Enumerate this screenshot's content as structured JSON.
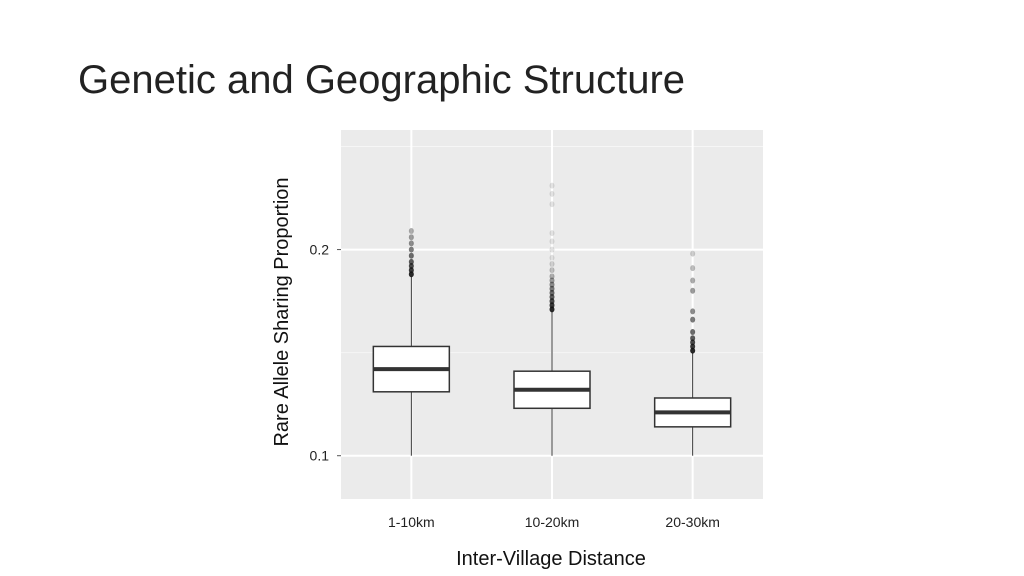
{
  "slide": {
    "title": "Genetic and Geographic Structure"
  },
  "chart_data": {
    "type": "box",
    "title": "",
    "xlabel": "Inter-Village Distance",
    "ylabel": "Rare Allele Sharing Proportion",
    "categories": [
      "1-10km",
      "10-20km",
      "20-30km"
    ],
    "y_ticks": [
      0.1,
      0.2
    ],
    "y_tick_labels": [
      "0.1",
      "0.2"
    ],
    "ylim": [
      0.079,
      0.258
    ],
    "grid": true,
    "legend": "none",
    "boxes": [
      {
        "category": "1-10km",
        "whisker_low": 0.1,
        "q1": 0.131,
        "median": 0.142,
        "q3": 0.153,
        "whisker_high": 0.187,
        "outliers": [
          0.188,
          0.19,
          0.192,
          0.194,
          0.197,
          0.2,
          0.203,
          0.206,
          0.209
        ]
      },
      {
        "category": "10-20km",
        "whisker_low": 0.1,
        "q1": 0.123,
        "median": 0.132,
        "q3": 0.141,
        "whisker_high": 0.17,
        "outliers": [
          0.171,
          0.173,
          0.175,
          0.177,
          0.179,
          0.181,
          0.183,
          0.185,
          0.187,
          0.19,
          0.193,
          0.196,
          0.2,
          0.204,
          0.208,
          0.222,
          0.227,
          0.231
        ]
      },
      {
        "category": "20-30km",
        "whisker_low": 0.1,
        "q1": 0.114,
        "median": 0.121,
        "q3": 0.128,
        "whisker_high": 0.15,
        "outliers": [
          0.151,
          0.153,
          0.155,
          0.157,
          0.16,
          0.166,
          0.17,
          0.18,
          0.185,
          0.191,
          0.198
        ]
      }
    ]
  }
}
